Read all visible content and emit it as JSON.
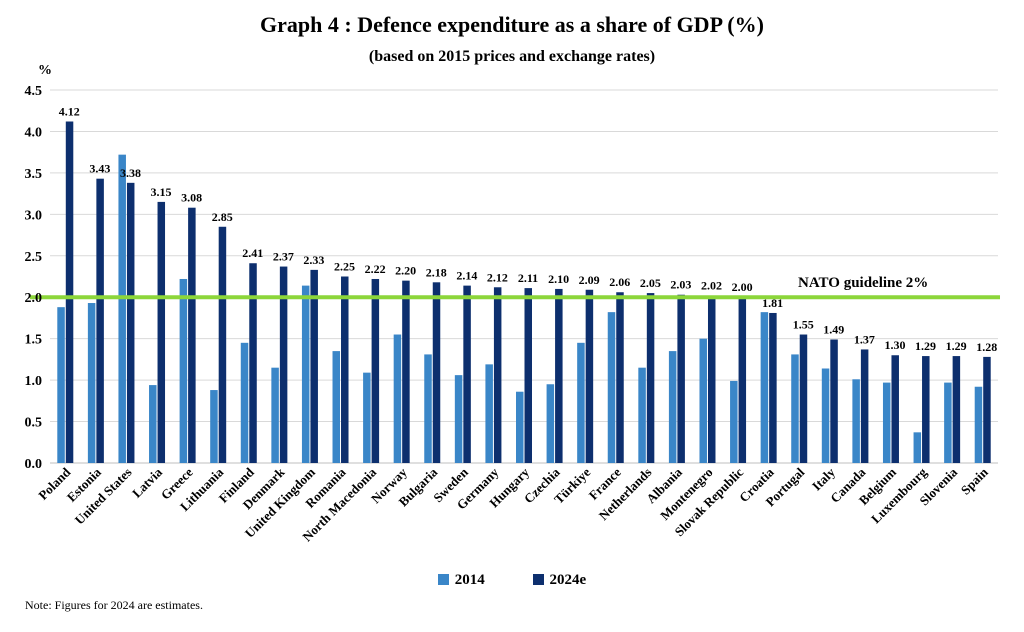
{
  "colors": {
    "series_2014": "#3A86C8",
    "series_2024": "#0D2F6E",
    "guideline": "#8CD63A",
    "grid": "#D9D9D9"
  },
  "chart_data": {
    "type": "bar",
    "title": "Graph 4 : Defence expenditure as a share of GDP (%)",
    "subtitle": "(based on 2015 prices and exchange rates)",
    "ylabel": "%",
    "ylim": [
      0,
      4.5
    ],
    "yticks": [
      "0.0",
      "0.5",
      "1.0",
      "1.5",
      "2.0",
      "2.5",
      "3.0",
      "3.5",
      "4.0",
      "4.5"
    ],
    "grid": true,
    "legend": "bottom",
    "categories": [
      "Poland",
      "Estonia",
      "United States",
      "Latvia",
      "Greece",
      "Lithuania",
      "Finland",
      "Denmark",
      "United Kingdom",
      "Romania",
      "North Macedonia",
      "Norway",
      "Bulgaria",
      "Sweden",
      "Germany",
      "Hungary",
      "Czechia",
      "Türkiye",
      "France",
      "Netherlands",
      "Albania",
      "Montenegro",
      "Slovak Republic",
      "Croatia",
      "Portugal",
      "Italy",
      "Canada",
      "Belgium",
      "Luxembourg",
      "Slovenia",
      "Spain"
    ],
    "series": [
      {
        "name": "2014",
        "values": [
          1.88,
          1.93,
          3.72,
          0.94,
          2.22,
          0.88,
          1.45,
          1.15,
          2.14,
          1.35,
          1.09,
          1.55,
          1.31,
          1.06,
          1.19,
          0.86,
          0.95,
          1.45,
          1.82,
          1.15,
          1.35,
          1.5,
          0.99,
          1.82,
          1.31,
          1.14,
          1.01,
          0.97,
          0.37,
          0.97,
          0.92
        ]
      },
      {
        "name": "2024e",
        "values": [
          4.12,
          3.43,
          3.38,
          3.15,
          3.08,
          2.85,
          2.41,
          2.37,
          2.33,
          2.25,
          2.22,
          2.2,
          2.18,
          2.14,
          2.12,
          2.11,
          2.1,
          2.09,
          2.06,
          2.05,
          2.03,
          2.02,
          2.0,
          1.81,
          1.55,
          1.49,
          1.37,
          1.3,
          1.29,
          1.29,
          1.28
        ]
      }
    ],
    "data_labels_2024": [
      "4.12",
      "3.43",
      "3.38",
      "3.15",
      "3.08",
      "2.85",
      "2.41",
      "2.37",
      "2.33",
      "2.25",
      "2.22",
      "2.20",
      "2.18",
      "2.14",
      "2.12",
      "2.11",
      "2.10",
      "2.09",
      "2.06",
      "2.05",
      "2.03",
      "2.02",
      "2.00",
      "1.81",
      "1.55",
      "1.49",
      "1.37",
      "1.30",
      "1.29",
      "1.29",
      "1.28"
    ],
    "guideline": {
      "value": 2.0,
      "label": "NATO guideline 2%"
    }
  },
  "note": "Note: Figures for 2024 are estimates."
}
